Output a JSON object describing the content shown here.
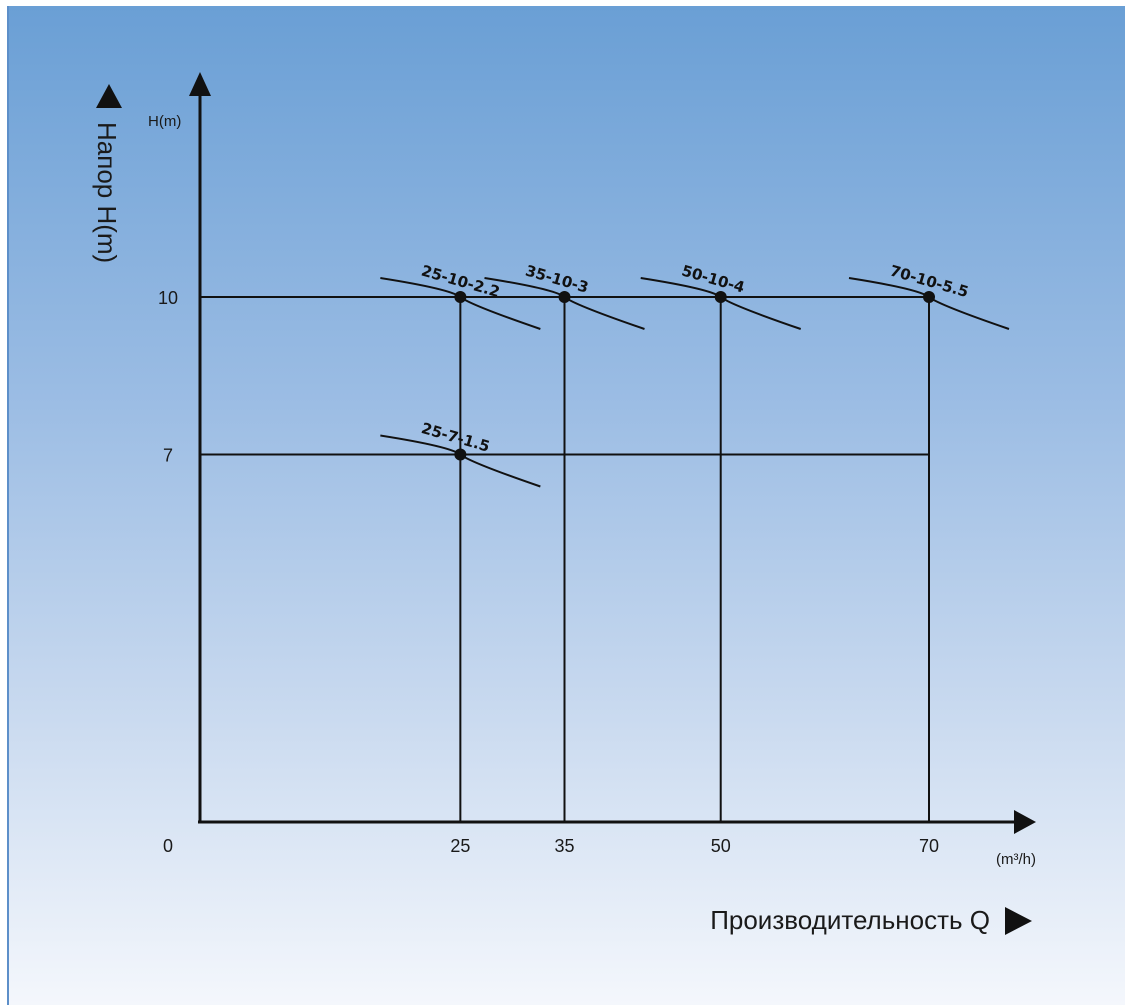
{
  "chart_data": {
    "type": "scatter",
    "xlabel": "Производительность Q",
    "ylabel": "Напор H(m)",
    "x_unit": "(m³/h)",
    "y_unit": "H(m)",
    "origin_label": "0",
    "x_ticks": [
      25,
      35,
      50,
      70
    ],
    "y_ticks": [
      7,
      10
    ],
    "xlim": [
      0,
      75
    ],
    "ylim": [
      0,
      13
    ],
    "grid": true,
    "points": [
      {
        "label": "25-10-2.2",
        "x": 25,
        "y": 10
      },
      {
        "label": "35-10-3",
        "x": 35,
        "y": 10
      },
      {
        "label": "50-10-4",
        "x": 50,
        "y": 10
      },
      {
        "label": "70-10-5.5",
        "x": 70,
        "y": 10
      },
      {
        "label": "25-7-1.5",
        "x": 25,
        "y": 7
      }
    ]
  },
  "colors": {
    "background_top": "#6a9fd5",
    "background_bottom": "#f4f7fc",
    "line": "#111111"
  }
}
